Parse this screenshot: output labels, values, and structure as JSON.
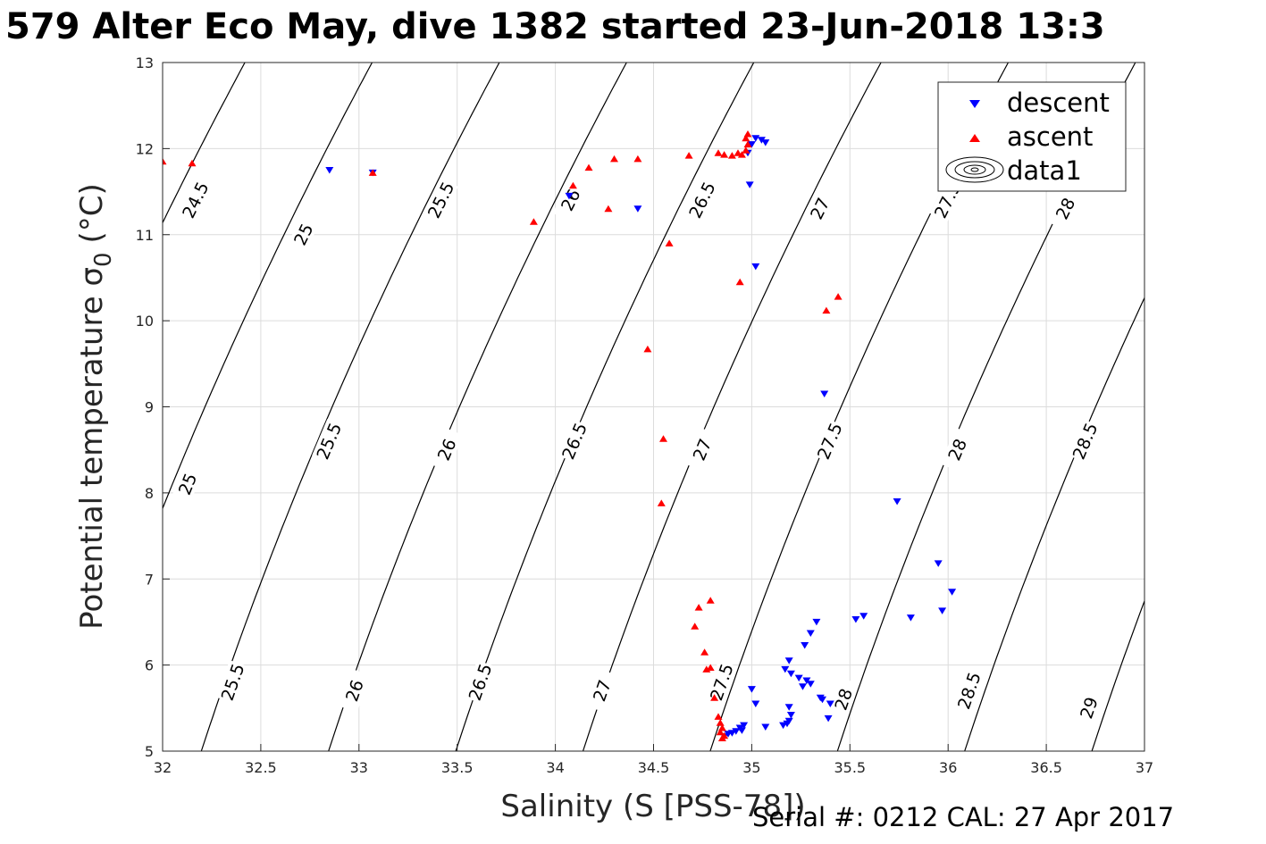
{
  "title": "579 Alter Eco May, dive 1382 started 23-Jun-2018 13:3",
  "footer": "Serial #: 0212  CAL: 27 Apr 2017",
  "chart_data": {
    "type": "scatter",
    "xlabel": "Salinity (S [PSS-78])",
    "ylabel": "Potential temperature σ",
    "ylabel_sub": "0",
    "ylabel_unit": "(°C)",
    "xlim": [
      32,
      37
    ],
    "ylim": [
      5,
      13
    ],
    "xticks": [
      "32",
      "32.5",
      "33",
      "33.5",
      "34",
      "34.5",
      "35",
      "35.5",
      "36",
      "36.5",
      "37"
    ],
    "yticks": [
      "5",
      "6",
      "7",
      "8",
      "9",
      "10",
      "11",
      "12",
      "13"
    ],
    "grid": true,
    "legend": {
      "placement": "top-right",
      "entries": [
        "descent",
        "ascent",
        "data1"
      ]
    },
    "colors": {
      "descent": "#0000ff",
      "ascent": "#ff0000",
      "contour": "#000000"
    },
    "contours": {
      "levels": [
        24.5,
        25,
        25.5,
        26,
        26.5,
        27,
        27.5,
        28,
        28.5,
        29
      ],
      "labels": [
        {
          "text": "24.5",
          "s": 32.17,
          "t": 11.4
        },
        {
          "text": "25",
          "s": 32.72,
          "t": 11.0
        },
        {
          "text": "25.5",
          "s": 33.42,
          "t": 11.4
        },
        {
          "text": "26",
          "s": 34.08,
          "t": 11.4
        },
        {
          "text": "26.5",
          "s": 34.75,
          "t": 11.4
        },
        {
          "text": "27",
          "s": 35.35,
          "t": 11.3
        },
        {
          "text": "27.5",
          "s": 36.0,
          "t": 11.4
        },
        {
          "text": "28",
          "s": 36.6,
          "t": 11.3
        },
        {
          "text": "25",
          "s": 32.13,
          "t": 8.1
        },
        {
          "text": "25.5",
          "s": 32.85,
          "t": 8.6
        },
        {
          "text": "26",
          "s": 33.45,
          "t": 8.5
        },
        {
          "text": "26.5",
          "s": 34.1,
          "t": 8.6
        },
        {
          "text": "27",
          "s": 34.75,
          "t": 8.5
        },
        {
          "text": "27.5",
          "s": 35.4,
          "t": 8.6
        },
        {
          "text": "28",
          "s": 36.05,
          "t": 8.5
        },
        {
          "text": "28.5",
          "s": 36.7,
          "t": 8.6
        },
        {
          "text": "25.5",
          "s": 32.36,
          "t": 5.8
        },
        {
          "text": "26",
          "s": 32.98,
          "t": 5.7
        },
        {
          "text": "26.5",
          "s": 33.62,
          "t": 5.8
        },
        {
          "text": "27",
          "s": 34.24,
          "t": 5.7
        },
        {
          "text": "27.5",
          "s": 34.85,
          "t": 5.8
        },
        {
          "text": "28",
          "s": 35.47,
          "t": 5.6
        },
        {
          "text": "28.5",
          "s": 36.11,
          "t": 5.7
        },
        {
          "text": "29",
          "s": 36.72,
          "t": 5.5
        }
      ]
    },
    "series": [
      {
        "name": "descent",
        "marker": "triangle-down",
        "points": [
          [
            32.85,
            11.75
          ],
          [
            33.07,
            11.72
          ],
          [
            34.07,
            11.45
          ],
          [
            34.42,
            11.3
          ],
          [
            34.98,
            11.95
          ],
          [
            35.0,
            12.05
          ],
          [
            35.02,
            12.12
          ],
          [
            35.05,
            12.1
          ],
          [
            35.07,
            12.07
          ],
          [
            34.99,
            11.58
          ],
          [
            35.02,
            10.63
          ],
          [
            35.37,
            9.15
          ],
          [
            35.74,
            7.9
          ],
          [
            35.95,
            7.18
          ],
          [
            36.02,
            6.85
          ],
          [
            35.97,
            6.63
          ],
          [
            35.81,
            6.55
          ],
          [
            35.57,
            6.57
          ],
          [
            35.53,
            6.53
          ],
          [
            35.33,
            6.5
          ],
          [
            35.3,
            6.37
          ],
          [
            35.27,
            6.23
          ],
          [
            35.19,
            6.05
          ],
          [
            35.17,
            5.95
          ],
          [
            35.2,
            5.9
          ],
          [
            35.24,
            5.85
          ],
          [
            35.28,
            5.82
          ],
          [
            35.3,
            5.78
          ],
          [
            35.26,
            5.75
          ],
          [
            35.35,
            5.62
          ],
          [
            35.36,
            5.6
          ],
          [
            35.4,
            5.55
          ],
          [
            35.39,
            5.38
          ],
          [
            35.0,
            5.72
          ],
          [
            35.02,
            5.55
          ],
          [
            35.19,
            5.51
          ],
          [
            35.2,
            5.42
          ],
          [
            35.19,
            5.35
          ],
          [
            35.18,
            5.32
          ],
          [
            35.16,
            5.3
          ],
          [
            35.07,
            5.28
          ],
          [
            34.96,
            5.3
          ],
          [
            34.94,
            5.27
          ],
          [
            34.95,
            5.24
          ],
          [
            34.92,
            5.23
          ],
          [
            34.9,
            5.21
          ],
          [
            34.88,
            5.2
          ],
          [
            34.86,
            5.17
          ]
        ]
      },
      {
        "name": "ascent",
        "marker": "triangle-up",
        "points": [
          [
            32.0,
            11.85
          ],
          [
            32.15,
            11.83
          ],
          [
            33.07,
            11.72
          ],
          [
            33.89,
            11.15
          ],
          [
            34.09,
            11.57
          ],
          [
            34.17,
            11.78
          ],
          [
            34.27,
            11.3
          ],
          [
            34.3,
            11.88
          ],
          [
            34.42,
            11.88
          ],
          [
            34.58,
            10.9
          ],
          [
            34.68,
            11.92
          ],
          [
            34.83,
            11.95
          ],
          [
            34.86,
            11.93
          ],
          [
            34.9,
            11.92
          ],
          [
            34.93,
            11.95
          ],
          [
            34.95,
            11.93
          ],
          [
            34.97,
            11.98
          ],
          [
            34.98,
            12.05
          ],
          [
            34.97,
            12.12
          ],
          [
            34.98,
            12.17
          ],
          [
            34.94,
            10.45
          ],
          [
            35.38,
            10.12
          ],
          [
            35.44,
            10.28
          ],
          [
            34.47,
            9.67
          ],
          [
            34.55,
            8.63
          ],
          [
            34.54,
            7.88
          ],
          [
            34.79,
            6.75
          ],
          [
            34.73,
            6.67
          ],
          [
            34.71,
            6.45
          ],
          [
            34.76,
            6.15
          ],
          [
            34.77,
            5.95
          ],
          [
            34.79,
            5.97
          ],
          [
            34.81,
            5.62
          ],
          [
            34.83,
            5.4
          ],
          [
            34.84,
            5.33
          ],
          [
            34.85,
            5.27
          ],
          [
            34.84,
            5.22
          ],
          [
            34.86,
            5.18
          ],
          [
            34.85,
            5.15
          ]
        ]
      }
    ]
  }
}
